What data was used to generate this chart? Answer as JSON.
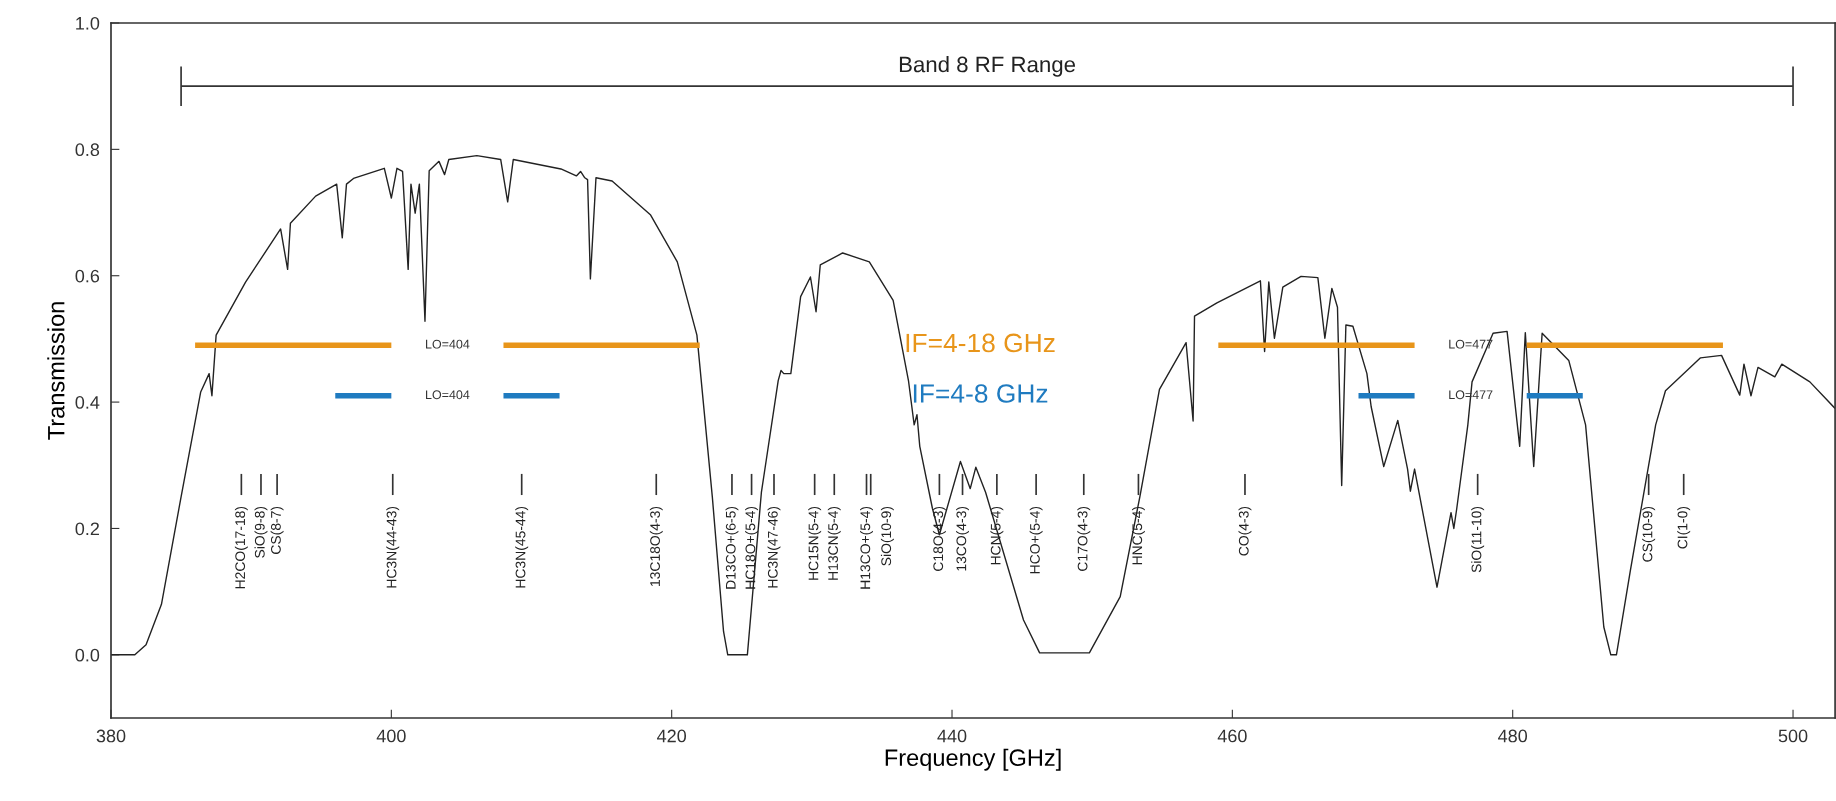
{
  "chart_data": {
    "type": "line",
    "xlabel": "Frequency [GHz]",
    "ylabel": "Transmission",
    "xlim": [
      380,
      503
    ],
    "ylim": [
      -0.1,
      1.0
    ],
    "xticks": [
      380,
      400,
      420,
      440,
      460,
      480,
      500
    ],
    "yticks": [
      {
        "value": 0.0,
        "label": "0.0"
      },
      {
        "value": 0.2,
        "label": "0.2"
      },
      {
        "value": 0.4,
        "label": "0.4"
      },
      {
        "value": 0.6,
        "label": "0.6"
      },
      {
        "value": 0.8,
        "label": "0.8"
      },
      {
        "value": 1.0,
        "label": "1.0"
      }
    ],
    "grid": false,
    "legend": false,
    "line_style": "solid",
    "series": [
      {
        "color": "#222222",
        "x": [
          380,
          381.7,
          382.5,
          383.6,
          385.0,
          386.4,
          387.0,
          387.2,
          387.5,
          389.6,
          392.1,
          392.6,
          392.8,
          394.6,
          396.1,
          396.5,
          396.8,
          397.3,
          399.5,
          400.0,
          400.4,
          400.8,
          401.2,
          401.4,
          401.7,
          402.0,
          402.4,
          402.7,
          403.4,
          403.8,
          404.1,
          406.1,
          407.8,
          408.3,
          408.7,
          412.1,
          413.2,
          413.5,
          413.8,
          414.0,
          414.2,
          414.6,
          415.75,
          418.5,
          420.4,
          421.8,
          422.9,
          423.7,
          424.0,
          425.4,
          426.4,
          427.6,
          427.8,
          428.0,
          428.5,
          429.2,
          429.9,
          430.3,
          430.6,
          432.2,
          434.1,
          435.8,
          436.9,
          437.3,
          437.5,
          437.7,
          438.6,
          439.1,
          440.6,
          441.3,
          441.7,
          442.4,
          445.1,
          446.25,
          449.8,
          452.0,
          453.4,
          454.8,
          456.7,
          457.2,
          457.3,
          458.9,
          462.0,
          462.3,
          462.6,
          463.0,
          463.6,
          464.9,
          466.1,
          466.6,
          467.1,
          467.5,
          467.8,
          468.1,
          468.6,
          469.6,
          469.9,
          470.8,
          471.8,
          472.5,
          472.7,
          473.0,
          474.6,
          475.6,
          475.8,
          476.0,
          476.8,
          477.1,
          478.6,
          479.6,
          480.5,
          480.9,
          481.5,
          482.1,
          484.0,
          485.2,
          486.5,
          487.0,
          487.4,
          488.4,
          490.2,
          490.9,
          493.4,
          494.9,
          496.2,
          496.5,
          497.0,
          497.5,
          498.7,
          499.2,
          501.2,
          503.0
        ],
        "values": [
          0.0,
          0.0,
          0.016,
          0.08,
          0.25,
          0.416,
          0.445,
          0.41,
          0.506,
          0.59,
          0.674,
          0.61,
          0.683,
          0.726,
          0.745,
          0.66,
          0.745,
          0.754,
          0.77,
          0.723,
          0.77,
          0.765,
          0.61,
          0.745,
          0.699,
          0.745,
          0.528,
          0.766,
          0.781,
          0.76,
          0.784,
          0.79,
          0.784,
          0.717,
          0.784,
          0.769,
          0.758,
          0.765,
          0.755,
          0.752,
          0.595,
          0.755,
          0.75,
          0.696,
          0.622,
          0.506,
          0.25,
          0.037,
          0.0,
          0.0,
          0.257,
          0.434,
          0.45,
          0.445,
          0.445,
          0.567,
          0.598,
          0.543,
          0.617,
          0.636,
          0.622,
          0.561,
          0.433,
          0.364,
          0.38,
          0.33,
          0.232,
          0.19,
          0.306,
          0.263,
          0.297,
          0.257,
          0.055,
          0.003,
          0.003,
          0.092,
          0.25,
          0.42,
          0.494,
          0.37,
          0.536,
          0.557,
          0.592,
          0.48,
          0.59,
          0.501,
          0.582,
          0.599,
          0.597,
          0.501,
          0.58,
          0.55,
          0.268,
          0.522,
          0.52,
          0.445,
          0.393,
          0.298,
          0.371,
          0.294,
          0.259,
          0.294,
          0.107,
          0.225,
          0.2,
          0.23,
          0.364,
          0.432,
          0.509,
          0.512,
          0.33,
          0.51,
          0.298,
          0.509,
          0.466,
          0.364,
          0.044,
          0.0,
          0.0,
          0.134,
          0.364,
          0.418,
          0.47,
          0.474,
          0.411,
          0.46,
          0.41,
          0.455,
          0.44,
          0.46,
          0.432,
          0.39
        ]
      },
      {
        "type": "line",
        "name": "IF=4-18 GHz",
        "color": "#e8951a",
        "x": [
          386,
          400,
          null,
          408,
          422,
          null,
          459,
          473,
          null,
          481,
          495
        ],
        "values": [
          0.49,
          0.49,
          null,
          0.49,
          0.49,
          null,
          0.49,
          0.49,
          null,
          0.49,
          0.49
        ]
      },
      {
        "type": "line",
        "name": "IF=4-8 GHz",
        "color": "#1f7bc0",
        "x": [
          396,
          400,
          null,
          408,
          412,
          null,
          469,
          473,
          null,
          481,
          485
        ],
        "values": [
          0.41,
          0.41,
          null,
          0.41,
          0.41,
          null,
          0.41,
          0.41,
          null,
          0.41,
          0.41
        ]
      },
      {
        "type": "line",
        "name": "Band 8 RF Range",
        "color": "#333333",
        "x": [
          385,
          500
        ],
        "values": [
          0.9,
          0.9
        ]
      }
    ],
    "ref_lines": [
      {
        "axis": "x",
        "value": 389.3,
        "label": "H2CO(17-18)"
      },
      {
        "axis": "x",
        "value": 390.7,
        "label": "SiO(9-8)"
      },
      {
        "axis": "x",
        "value": 391.85,
        "label": "CS(8-7)"
      },
      {
        "axis": "x",
        "value": 400.1,
        "label": "HC3N(44-43)"
      },
      {
        "axis": "x",
        "value": 409.3,
        "label": "HC3N(45-44)"
      },
      {
        "axis": "x",
        "value": 418.9,
        "label": "13C18O(4-3)"
      },
      {
        "axis": "x",
        "value": 424.3,
        "label": "D13CO+(6-5)"
      },
      {
        "axis": "x",
        "value": 425.7,
        "label": "HC18O+(5-4)"
      },
      {
        "axis": "x",
        "value": 427.3,
        "label": "HC3N(47-46)"
      },
      {
        "axis": "x",
        "value": 430.2,
        "label": "HC15N(5-4)"
      },
      {
        "axis": "x",
        "value": 431.6,
        "label": "H13CN(5-4)"
      },
      {
        "axis": "x",
        "value": 433.9,
        "label": "H13CO+(5-4)"
      },
      {
        "axis": "x",
        "value": 434.2,
        "label": "SiO(10-9)"
      },
      {
        "axis": "x",
        "value": 439.1,
        "label": "C18O(4-3)"
      },
      {
        "axis": "x",
        "value": 440.75,
        "label": "13CO(4-3)"
      },
      {
        "axis": "x",
        "value": 443.2,
        "label": "HCN(5-4)"
      },
      {
        "axis": "x",
        "value": 446.0,
        "label": "HCO+(5-4)"
      },
      {
        "axis": "x",
        "value": 449.4,
        "label": "C17O(4-3)"
      },
      {
        "axis": "x",
        "value": 453.3,
        "label": "HNC(5-4)"
      },
      {
        "axis": "x",
        "value": 460.9,
        "label": "CO(4-3)"
      },
      {
        "axis": "x",
        "value": 477.5,
        "label": "SiO(11-10)"
      },
      {
        "axis": "x",
        "value": 489.7,
        "label": "CS(10-9)"
      },
      {
        "axis": "x",
        "value": 492.2,
        "label": "CI(1-0)"
      }
    ],
    "annotations": [
      "LO=404",
      "LO=477",
      "LO=404",
      "LO=477"
    ]
  }
}
